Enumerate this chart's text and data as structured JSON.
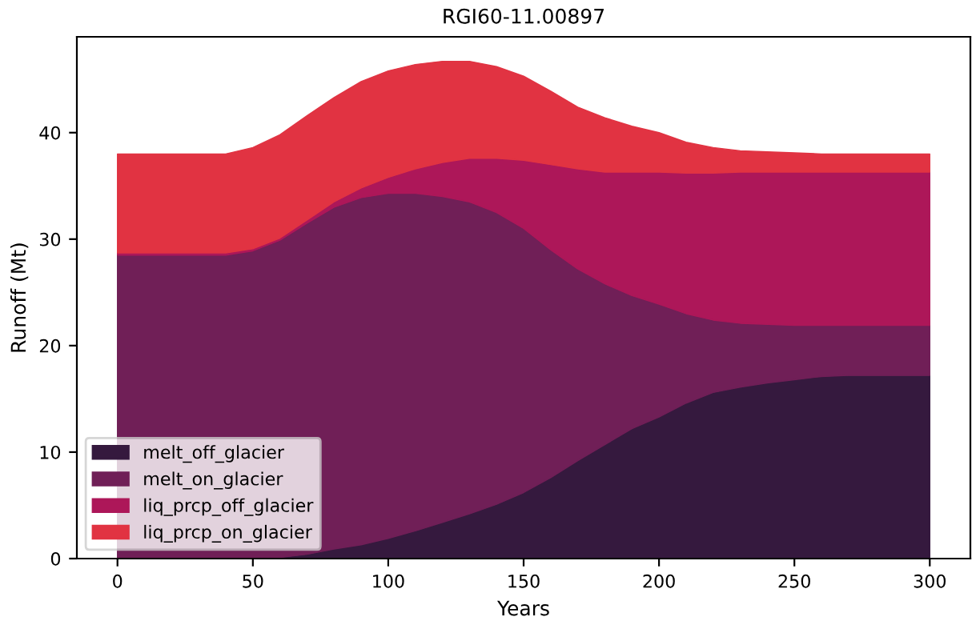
{
  "chart_data": {
    "type": "area",
    "stacked": true,
    "title": "RGI60-11.00897",
    "xlabel": "Years",
    "ylabel": "Runoff (Mt)",
    "x": [
      0,
      10,
      20,
      30,
      40,
      50,
      60,
      70,
      80,
      90,
      100,
      110,
      120,
      130,
      140,
      150,
      160,
      170,
      180,
      190,
      200,
      210,
      220,
      230,
      240,
      250,
      260,
      270,
      280,
      290,
      300
    ],
    "series": [
      {
        "name": "melt_off_glacier",
        "color": "#35193e",
        "values": [
          0,
          0,
          0,
          0,
          0,
          0,
          0.1,
          0.4,
          0.9,
          1.3,
          1.9,
          2.6,
          3.4,
          4.2,
          5.1,
          6.2,
          7.6,
          9.2,
          10.7,
          12.2,
          13.3,
          14.6,
          15.6,
          16.1,
          16.5,
          16.8,
          17.1,
          17.2,
          17.2,
          17.2,
          17.2
        ]
      },
      {
        "name": "melt_on_glacier",
        "color": "#701f57",
        "values": [
          28.5,
          28.5,
          28.5,
          28.5,
          28.5,
          28.9,
          29.8,
          31.1,
          32.1,
          32.6,
          32.4,
          31.7,
          30.6,
          29.3,
          27.4,
          24.8,
          21.4,
          18.0,
          15.1,
          12.5,
          10.6,
          8.4,
          6.8,
          6.0,
          5.5,
          5.1,
          4.8,
          4.7,
          4.7,
          4.7,
          4.7
        ]
      },
      {
        "name": "liq_prcp_off_glacier",
        "color": "#ad1759",
        "values": [
          0.2,
          0.2,
          0.2,
          0.2,
          0.2,
          0.2,
          0.2,
          0.3,
          0.5,
          0.9,
          1.5,
          2.3,
          3.2,
          4.1,
          5.1,
          6.4,
          8.0,
          9.4,
          10.5,
          11.6,
          12.4,
          13.2,
          13.8,
          14.2,
          14.3,
          14.4,
          14.4,
          14.4,
          14.4,
          14.4,
          14.4
        ]
      },
      {
        "name": "liq_prcp_on_glacier",
        "color": "#e13342",
        "values": [
          9.3,
          9.3,
          9.3,
          9.3,
          9.3,
          9.5,
          9.7,
          9.8,
          9.8,
          10.0,
          10.0,
          9.8,
          9.5,
          9.1,
          8.6,
          7.9,
          6.9,
          5.8,
          5.1,
          4.3,
          3.7,
          2.9,
          2.4,
          2.0,
          1.9,
          1.8,
          1.7,
          1.7,
          1.7,
          1.7,
          1.7
        ]
      }
    ],
    "xlim": [
      -15,
      315
    ],
    "ylim": [
      0,
      49
    ],
    "xticks": [
      0,
      50,
      100,
      150,
      200,
      250,
      300
    ],
    "yticks": [
      0,
      10,
      20,
      30,
      40
    ],
    "legend": "bottom left",
    "grid": false
  }
}
